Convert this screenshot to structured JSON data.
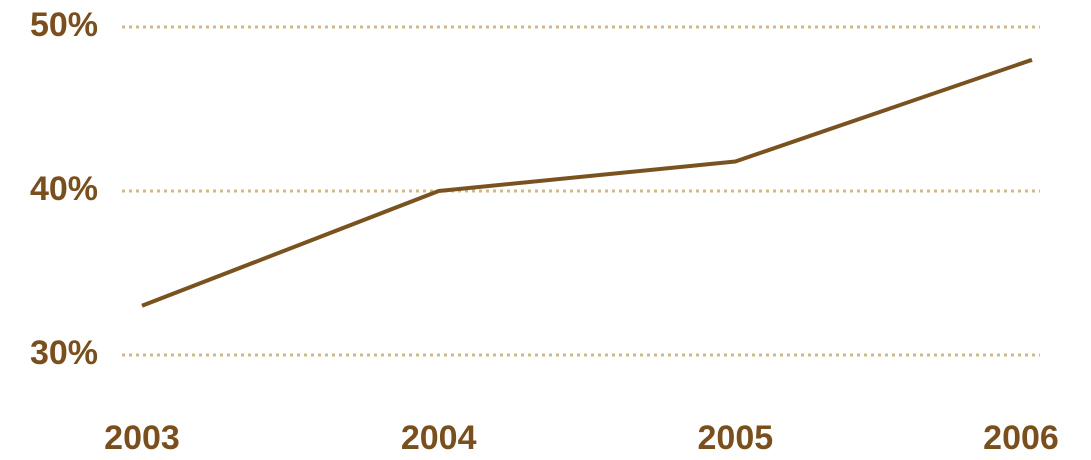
{
  "chart_data": {
    "type": "line",
    "categories": [
      "2003",
      "2004",
      "2005",
      "2006"
    ],
    "series": [
      {
        "name": null,
        "color": "#7a5220",
        "values": [
          33,
          40,
          41.8,
          48
        ]
      }
    ],
    "ylim": [
      30,
      50
    ],
    "yticks": [
      {
        "value": 30,
        "label": "30%"
      },
      {
        "value": 40,
        "label": "40%"
      },
      {
        "value": 50,
        "label": "50%"
      }
    ],
    "grid": true
  }
}
